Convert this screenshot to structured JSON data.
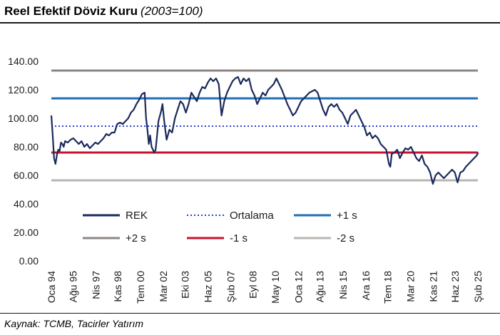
{
  "header": {
    "title": "Reel Efektif Döviz Kuru",
    "subtitle": "(2003=100)"
  },
  "footer": {
    "source": "Kaynak: TCMB, Tacirler Yatırım"
  },
  "chart_data": {
    "type": "line",
    "title": "Reel Efektif Döviz Kuru",
    "subtitle": "(2003=100)",
    "ylim": [
      0,
      140
    ],
    "y_ticks": [
      "0.00",
      "20.00",
      "40.00",
      "60.00",
      "80.00",
      "100.00",
      "120.00",
      "140.00"
    ],
    "x_ticks": [
      {
        "label": "Oca 94",
        "t": 1994.0
      },
      {
        "label": "Ağu 95",
        "t": 1995.58
      },
      {
        "label": "Nis 97",
        "t": 1997.25
      },
      {
        "label": "Kas 98",
        "t": 1998.83
      },
      {
        "label": "Tem 00",
        "t": 2000.5
      },
      {
        "label": "Mar 02",
        "t": 2002.17
      },
      {
        "label": "Eki 03",
        "t": 2003.75
      },
      {
        "label": "Haz 05",
        "t": 2005.42
      },
      {
        "label": "Şub 07",
        "t": 2007.08
      },
      {
        "label": "Eyl 08",
        "t": 2008.67
      },
      {
        "label": "May 10",
        "t": 2010.33
      },
      {
        "label": "Oca 12",
        "t": 2012.0
      },
      {
        "label": "Ağu 13",
        "t": 2013.58
      },
      {
        "label": "Nis 15",
        "t": 2015.25
      },
      {
        "label": "Ara 16",
        "t": 2016.92
      },
      {
        "label": "Tem 18",
        "t": 2018.5
      },
      {
        "label": "Mar 20",
        "t": 2020.17
      },
      {
        "label": "Kas 21",
        "t": 2021.83
      },
      {
        "label": "Haz 23",
        "t": 2023.42
      },
      {
        "label": "Şub 25",
        "t": 2025.08
      }
    ],
    "reference_lines": [
      {
        "name": "Ortalama",
        "value": 94.5,
        "color": "#2b3fcf",
        "dash": "dotted"
      },
      {
        "name": "+1 s",
        "value": 114,
        "color": "#1f6fb5",
        "dash": "solid"
      },
      {
        "name": "+2 s",
        "value": 133.5,
        "color": "#8c8682",
        "dash": "solid"
      },
      {
        "name": "-1 s",
        "value": 76,
        "color": "#c4122f",
        "dash": "solid"
      },
      {
        "name": "-2 s",
        "value": 56.5,
        "color": "#b9b6b2",
        "dash": "solid"
      }
    ],
    "series": [
      {
        "name": "REK",
        "color": "#1b2a5c",
        "points": [
          [
            1994.0,
            102
          ],
          [
            1994.1,
            88
          ],
          [
            1994.2,
            72
          ],
          [
            1994.3,
            68
          ],
          [
            1994.4,
            74
          ],
          [
            1994.5,
            78
          ],
          [
            1994.6,
            77
          ],
          [
            1994.7,
            83
          ],
          [
            1994.8,
            82
          ],
          [
            1994.9,
            80
          ],
          [
            1995.0,
            84
          ],
          [
            1995.2,
            83
          ],
          [
            1995.4,
            85
          ],
          [
            1995.6,
            86
          ],
          [
            1995.8,
            84
          ],
          [
            1996.0,
            82
          ],
          [
            1996.2,
            84
          ],
          [
            1996.4,
            80
          ],
          [
            1996.6,
            82
          ],
          [
            1996.8,
            79
          ],
          [
            1997.0,
            81
          ],
          [
            1997.2,
            83
          ],
          [
            1997.4,
            82
          ],
          [
            1997.6,
            84
          ],
          [
            1997.8,
            86
          ],
          [
            1998.0,
            89
          ],
          [
            1998.2,
            88
          ],
          [
            1998.4,
            90
          ],
          [
            1998.6,
            90
          ],
          [
            1998.8,
            96
          ],
          [
            1999.0,
            97
          ],
          [
            1999.2,
            96
          ],
          [
            1999.4,
            98
          ],
          [
            1999.6,
            100
          ],
          [
            1999.8,
            104
          ],
          [
            2000.0,
            106
          ],
          [
            2000.2,
            110
          ],
          [
            2000.4,
            113
          ],
          [
            2000.6,
            117
          ],
          [
            2000.8,
            118
          ],
          [
            2000.9,
            100
          ],
          [
            2001.0,
            92
          ],
          [
            2001.1,
            82
          ],
          [
            2001.2,
            88
          ],
          [
            2001.3,
            80
          ],
          [
            2001.5,
            76
          ],
          [
            2001.6,
            78
          ],
          [
            2001.7,
            88
          ],
          [
            2001.8,
            98
          ],
          [
            2002.0,
            105
          ],
          [
            2002.1,
            110
          ],
          [
            2002.2,
            100
          ],
          [
            2002.3,
            92
          ],
          [
            2002.4,
            85
          ],
          [
            2002.6,
            92
          ],
          [
            2002.8,
            90
          ],
          [
            2003.0,
            100
          ],
          [
            2003.2,
            106
          ],
          [
            2003.4,
            112
          ],
          [
            2003.6,
            110
          ],
          [
            2003.8,
            104
          ],
          [
            2004.0,
            110
          ],
          [
            2004.2,
            118
          ],
          [
            2004.4,
            115
          ],
          [
            2004.6,
            112
          ],
          [
            2004.8,
            118
          ],
          [
            2005.0,
            122
          ],
          [
            2005.2,
            121
          ],
          [
            2005.4,
            125
          ],
          [
            2005.6,
            128
          ],
          [
            2005.8,
            126
          ],
          [
            2006.0,
            128
          ],
          [
            2006.2,
            124
          ],
          [
            2006.4,
            102
          ],
          [
            2006.6,
            112
          ],
          [
            2006.8,
            118
          ],
          [
            2007.0,
            122
          ],
          [
            2007.2,
            126
          ],
          [
            2007.4,
            128
          ],
          [
            2007.6,
            129
          ],
          [
            2007.8,
            124
          ],
          [
            2008.0,
            128
          ],
          [
            2008.2,
            126
          ],
          [
            2008.4,
            128
          ],
          [
            2008.6,
            120
          ],
          [
            2008.8,
            116
          ],
          [
            2009.0,
            110
          ],
          [
            2009.2,
            114
          ],
          [
            2009.4,
            118
          ],
          [
            2009.6,
            116
          ],
          [
            2009.8,
            120
          ],
          [
            2010.0,
            122
          ],
          [
            2010.2,
            124
          ],
          [
            2010.4,
            128
          ],
          [
            2010.6,
            124
          ],
          [
            2010.8,
            120
          ],
          [
            2011.0,
            115
          ],
          [
            2011.2,
            110
          ],
          [
            2011.4,
            106
          ],
          [
            2011.6,
            102
          ],
          [
            2011.8,
            104
          ],
          [
            2012.0,
            108
          ],
          [
            2012.2,
            112
          ],
          [
            2012.4,
            114
          ],
          [
            2012.6,
            116
          ],
          [
            2012.8,
            118
          ],
          [
            2013.0,
            119
          ],
          [
            2013.2,
            120
          ],
          [
            2013.4,
            118
          ],
          [
            2013.6,
            112
          ],
          [
            2013.8,
            106
          ],
          [
            2014.0,
            102
          ],
          [
            2014.2,
            108
          ],
          [
            2014.4,
            110
          ],
          [
            2014.6,
            108
          ],
          [
            2014.8,
            110
          ],
          [
            2015.0,
            106
          ],
          [
            2015.2,
            104
          ],
          [
            2015.4,
            100
          ],
          [
            2015.6,
            96
          ],
          [
            2015.8,
            102
          ],
          [
            2016.0,
            104
          ],
          [
            2016.2,
            106
          ],
          [
            2016.4,
            102
          ],
          [
            2016.6,
            98
          ],
          [
            2016.8,
            94
          ],
          [
            2017.0,
            88
          ],
          [
            2017.2,
            90
          ],
          [
            2017.4,
            86
          ],
          [
            2017.6,
            88
          ],
          [
            2017.8,
            86
          ],
          [
            2018.0,
            82
          ],
          [
            2018.2,
            80
          ],
          [
            2018.4,
            78
          ],
          [
            2018.6,
            68
          ],
          [
            2018.7,
            66
          ],
          [
            2018.8,
            75
          ],
          [
            2019.0,
            76
          ],
          [
            2019.2,
            78
          ],
          [
            2019.4,
            72
          ],
          [
            2019.6,
            76
          ],
          [
            2019.8,
            79
          ],
          [
            2020.0,
            78
          ],
          [
            2020.2,
            80
          ],
          [
            2020.4,
            76
          ],
          [
            2020.6,
            72
          ],
          [
            2020.8,
            70
          ],
          [
            2021.0,
            74
          ],
          [
            2021.2,
            68
          ],
          [
            2021.4,
            66
          ],
          [
            2021.6,
            62
          ],
          [
            2021.8,
            54
          ],
          [
            2022.0,
            60
          ],
          [
            2022.2,
            62
          ],
          [
            2022.4,
            60
          ],
          [
            2022.6,
            58
          ],
          [
            2022.8,
            60
          ],
          [
            2023.0,
            62
          ],
          [
            2023.2,
            64
          ],
          [
            2023.4,
            62
          ],
          [
            2023.6,
            55
          ],
          [
            2023.8,
            62
          ],
          [
            2024.0,
            63
          ],
          [
            2024.2,
            66
          ],
          [
            2024.4,
            68
          ],
          [
            2024.6,
            70
          ],
          [
            2024.8,
            72
          ],
          [
            2025.0,
            74
          ],
          [
            2025.1,
            76
          ]
        ]
      }
    ],
    "legend": {
      "position": "bottom",
      "entries": [
        "REK",
        "Ortalama",
        "+1 s",
        "+2 s",
        "-1 s",
        "-2 s"
      ]
    }
  }
}
